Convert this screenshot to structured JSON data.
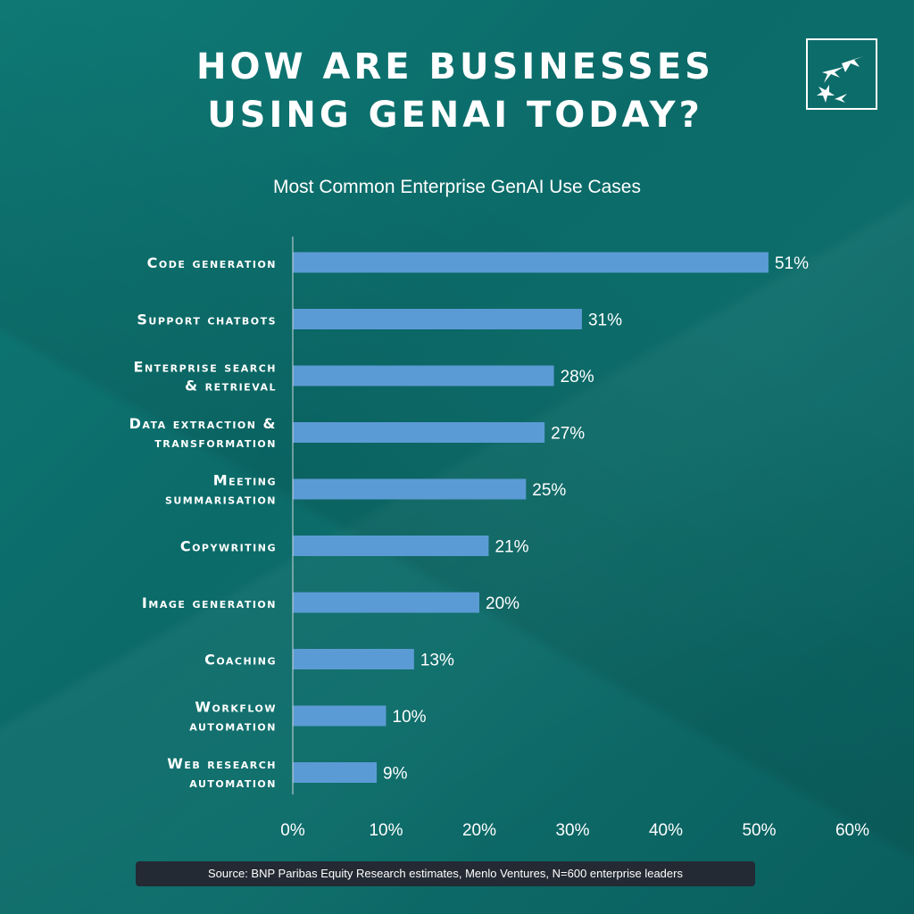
{
  "title_lines": [
    "How are businesses",
    "using GenAI today?"
  ],
  "logo": {
    "name": "BNP Paribas stars logo"
  },
  "chart_data": {
    "type": "bar",
    "orientation": "horizontal",
    "title": "Most Common Enterprise GenAI Use Cases",
    "categories": [
      [
        "Code generation"
      ],
      [
        "Support chatbots"
      ],
      [
        "Enterprise search",
        "& retrieval"
      ],
      [
        "Data extraction &",
        "transformation"
      ],
      [
        "Meeting",
        "summarisation"
      ],
      [
        "Copywriting"
      ],
      [
        "Image generation"
      ],
      [
        "Coaching"
      ],
      [
        "Workflow",
        "automation"
      ],
      [
        "Web research",
        "automation"
      ]
    ],
    "values": [
      51,
      31,
      28,
      27,
      25,
      21,
      20,
      13,
      10,
      9
    ],
    "data_labels": [
      "51%",
      "31%",
      "28%",
      "27%",
      "25%",
      "21%",
      "20%",
      "13%",
      "10%",
      "9%"
    ],
    "xlim": [
      0,
      60
    ],
    "xticks": [
      0,
      10,
      20,
      30,
      40,
      50,
      60
    ],
    "xtick_labels": [
      "0%",
      "10%",
      "20%",
      "30%",
      "40%",
      "50%",
      "60%"
    ],
    "grid": false,
    "bar_color": "#5b9bd5"
  },
  "source": "Source: BNP Paribas Equity Research estimates, Menlo Ventures, N=600 enterprise leaders",
  "colors": {
    "background": "#0d6d6a",
    "source_bar": "#232a33",
    "text": "#ffffff"
  }
}
